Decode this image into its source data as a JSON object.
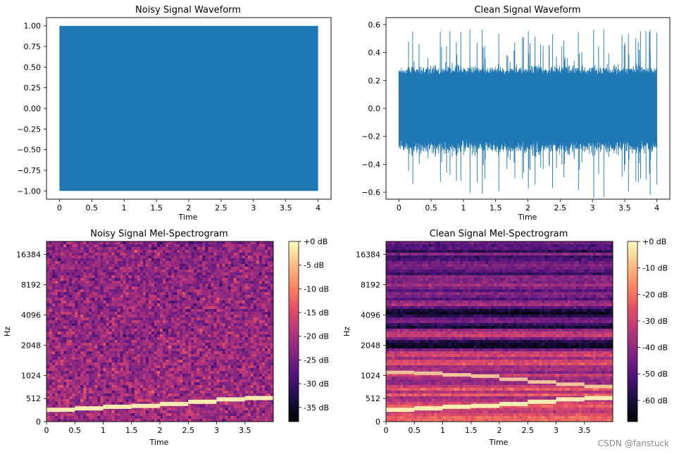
{
  "chart_data": [
    {
      "type": "line",
      "title": "Noisy Signal Waveform",
      "xlabel": "Time",
      "ylabel": "",
      "xlim": [
        -0.2,
        4.2
      ],
      "ylim": [
        -1.1,
        1.1
      ],
      "x_ticks": [
        0,
        0.5,
        1,
        1.5,
        2,
        2.5,
        3,
        3.5,
        4
      ],
      "x_tick_labels": [
        "0",
        "0.5",
        "1",
        "1.5",
        "2",
        "2.5",
        "3",
        "3.5",
        "4"
      ],
      "y_ticks": [
        1.0,
        0.75,
        0.5,
        0.25,
        0.0,
        -0.25,
        -0.5,
        -0.75,
        -1.0
      ],
      "y_tick_labels": [
        "1.00",
        "0.75",
        "0.50",
        "0.25",
        "0.00",
        "−0.25",
        "−0.50",
        "−0.75",
        "−1.00"
      ],
      "series": [
        {
          "name": "noisy",
          "x_range": [
            0,
            4
          ],
          "envelope": [
            -1.0,
            1.0
          ],
          "color": "#1f77b4"
        }
      ]
    },
    {
      "type": "line",
      "title": "Clean Signal Waveform",
      "xlabel": "Time",
      "ylabel": "",
      "xlim": [
        -0.2,
        4.2
      ],
      "ylim": [
        -0.65,
        0.65
      ],
      "x_ticks": [
        0,
        0.5,
        1,
        1.5,
        2,
        2.5,
        3,
        3.5,
        4
      ],
      "x_tick_labels": [
        "0",
        "0.5",
        "1",
        "1.5",
        "2",
        "2.5",
        "3",
        "3.5",
        "4"
      ],
      "y_ticks": [
        0.6,
        0.4,
        0.2,
        0.0,
        -0.2,
        -0.4,
        -0.6
      ],
      "y_tick_labels": [
        "0.6",
        "0.4",
        "0.2",
        "0.0",
        "−0.2",
        "−0.4",
        "−0.6"
      ],
      "series": [
        {
          "name": "clean",
          "x_range": [
            0,
            4
          ],
          "body_amplitude": 0.3,
          "peak_amplitude": 0.6,
          "color": "#1f77b4"
        }
      ]
    },
    {
      "type": "heatmap",
      "title": "Noisy Signal Mel-Spectrogram",
      "xlabel": "Time",
      "ylabel": "Hz",
      "xlim": [
        0,
        4.0
      ],
      "x_ticks": [
        0,
        0.5,
        1,
        1.5,
        2,
        2.5,
        3,
        3.5
      ],
      "x_tick_labels": [
        "0",
        "0.5",
        "1",
        "1.5",
        "2",
        "2.5",
        "3",
        "3.5"
      ],
      "y_tick_labels": [
        "16384",
        "8192",
        "4096",
        "2048",
        "1024",
        "512",
        "0"
      ],
      "colorbar_ticks": [
        0,
        -5,
        -10,
        -15,
        -20,
        -25,
        -30,
        -35
      ],
      "colorbar_labels": [
        "+0 dB",
        "-5 dB",
        "-10 dB",
        "-15 dB",
        "-20 dB",
        "-25 dB",
        "-30 dB",
        "-35 dB"
      ],
      "colorbar_range": [
        -38,
        0
      ],
      "tone_segments_hz": [
        262,
        294,
        330,
        349,
        392,
        440,
        494,
        523
      ],
      "tone_segment_seconds": 0.5
    },
    {
      "type": "heatmap",
      "title": "Clean Signal Mel-Spectrogram",
      "xlabel": "Time",
      "ylabel": "Hz",
      "xlim": [
        0,
        4.0
      ],
      "x_ticks": [
        0,
        0.5,
        1,
        1.5,
        2,
        2.5,
        3,
        3.5
      ],
      "x_tick_labels": [
        "0",
        "0.5",
        "1",
        "1.5",
        "2",
        "2.5",
        "3",
        "3.5"
      ],
      "y_tick_labels": [
        "16384",
        "8192",
        "4096",
        "2048",
        "1024",
        "512",
        "0"
      ],
      "colorbar_ticks": [
        0,
        -10,
        -20,
        -30,
        -40,
        -50,
        -60
      ],
      "colorbar_labels": [
        "+0 dB",
        "-10 dB",
        "-20 dB",
        "-30 dB",
        "-40 dB",
        "-50 dB",
        "-60 dB"
      ],
      "colorbar_range": [
        -68,
        0
      ],
      "tone_segments_hz": [
        262,
        294,
        330,
        349,
        392,
        440,
        494,
        523
      ],
      "harmonic_segments_hz": [
        1100,
        1080,
        1040,
        1010,
        940,
        880,
        830,
        780
      ],
      "tone_segment_seconds": 0.5
    }
  ],
  "watermark": "CSDN @fanstuck"
}
